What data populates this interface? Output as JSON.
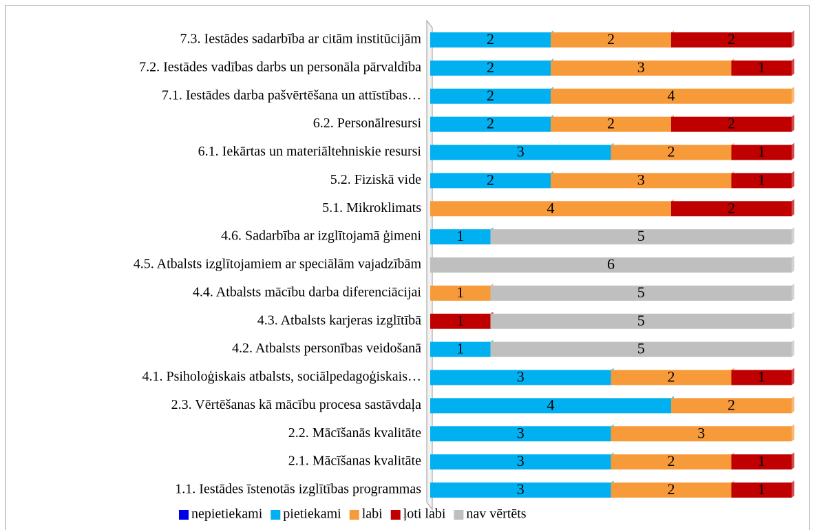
{
  "chart_data": {
    "type": "stacked-bar-horizontal",
    "categories": [
      "7.3. Iestādes sadarbība ar citām institūcijām",
      "7.2. Iestādes vadības darbs un personāla pārvaldība",
      "7.1. Iestādes darba pašvērtēšana un attīstības…",
      "6.2. Personālresursi",
      "6.1. Iekārtas un materiāltehniskie resursi",
      "5.2. Fiziskā vide",
      "5.1. Mikroklimats",
      "4.6. Sadarbība ar izglītojamā ģimeni",
      "4.5. Atbalsts izglītojamiem ar speciālām vajadzībām",
      "4.4. Atbalsts mācību darba diferenciācijai",
      "4.3. Atbalsts karjeras izglītībā",
      "4.2. Atbalsts personības veidošanā",
      "4.1. Psiholoģiskais atbalsts, sociālpedagoģiskais…",
      "2.3. Vērtēšanas kā mācību procesa sastāvdaļa",
      "2.2. Mācīšanās kvalitāte",
      "2.1. Mācīšanas kvalitāte",
      "1.1. Iestādes īstenotās izglītības programmas"
    ],
    "series": [
      {
        "name": "nepietiekami",
        "color": "#0000e6",
        "values": [
          0,
          0,
          0,
          0,
          0,
          0,
          0,
          0,
          0,
          0,
          0,
          0,
          0,
          0,
          0,
          0,
          0
        ]
      },
      {
        "name": "pietiekami",
        "color": "#00b0f0",
        "values": [
          2,
          2,
          2,
          2,
          3,
          2,
          0,
          1,
          0,
          0,
          0,
          1,
          3,
          4,
          3,
          3,
          3
        ]
      },
      {
        "name": "labi",
        "color": "#f79a3a",
        "values": [
          2,
          3,
          4,
          2,
          2,
          3,
          4,
          0,
          0,
          1,
          0,
          0,
          2,
          2,
          3,
          2,
          2
        ]
      },
      {
        "name": "ļoti labi",
        "color": "#c00000",
        "values": [
          2,
          1,
          0,
          2,
          1,
          1,
          2,
          0,
          0,
          0,
          1,
          0,
          1,
          0,
          0,
          1,
          1
        ]
      },
      {
        "name": "nav vērtēts",
        "color": "#bfbfbf",
        "values": [
          0,
          0,
          0,
          0,
          0,
          0,
          0,
          5,
          6,
          5,
          5,
          5,
          0,
          0,
          0,
          0,
          0
        ]
      }
    ],
    "legend": "bottom"
  }
}
